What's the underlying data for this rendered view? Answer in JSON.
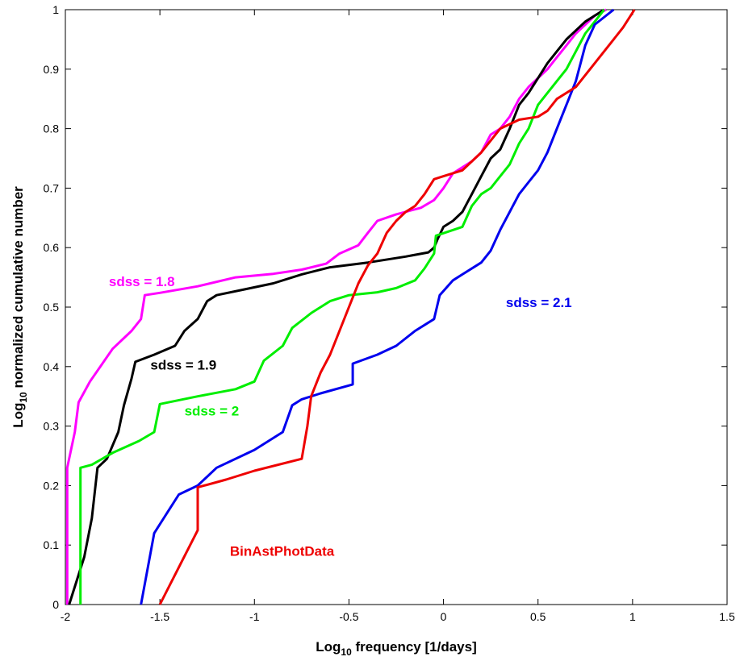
{
  "chart_data": {
    "type": "line",
    "title": "",
    "xlabel": {
      "base": "Log",
      "sub": "10",
      "rest": " frequency [1/days]"
    },
    "ylabel": {
      "base": "Log",
      "sub": "10",
      "rest": " normalized cumulative number"
    },
    "xlim": [
      -2,
      1.5
    ],
    "ylim": [
      0,
      1
    ],
    "xticks": [
      "-2",
      "-1.5",
      "-1",
      "-0.5",
      "0",
      "0.5",
      "1",
      "1.5"
    ],
    "yticks": [
      "0",
      "0.1",
      "0.2",
      "0.3",
      "0.4",
      "0.5",
      "0.6",
      "0.7",
      "0.8",
      "0.9",
      "1"
    ],
    "grid": false,
    "legend": "none",
    "series": [
      {
        "name": "sdss = 1.8",
        "color": "#ff00ff",
        "points": [
          [
            -1.99,
            0
          ],
          [
            -1.99,
            0.23
          ],
          [
            -1.95,
            0.29
          ],
          [
            -1.93,
            0.34
          ],
          [
            -1.87,
            0.375
          ],
          [
            -1.75,
            0.43
          ],
          [
            -1.65,
            0.46
          ],
          [
            -1.6,
            0.48
          ],
          [
            -1.58,
            0.52
          ],
          [
            -1.5,
            0.524
          ],
          [
            -1.3,
            0.535
          ],
          [
            -1.1,
            0.55
          ],
          [
            -0.9,
            0.556
          ],
          [
            -0.75,
            0.563
          ],
          [
            -0.62,
            0.573
          ],
          [
            -0.55,
            0.59
          ],
          [
            -0.45,
            0.604
          ],
          [
            -0.4,
            0.625
          ],
          [
            -0.35,
            0.645
          ],
          [
            -0.25,
            0.656
          ],
          [
            -0.12,
            0.667
          ],
          [
            -0.05,
            0.68
          ],
          [
            0.0,
            0.7
          ],
          [
            0.05,
            0.725
          ],
          [
            0.15,
            0.745
          ],
          [
            0.2,
            0.76
          ],
          [
            0.25,
            0.79
          ],
          [
            0.3,
            0.8
          ],
          [
            0.35,
            0.82
          ],
          [
            0.4,
            0.85
          ],
          [
            0.45,
            0.87
          ],
          [
            0.5,
            0.885
          ],
          [
            0.55,
            0.9
          ],
          [
            0.6,
            0.92
          ],
          [
            0.65,
            0.94
          ],
          [
            0.7,
            0.96
          ],
          [
            0.75,
            0.975
          ],
          [
            0.8,
            0.99
          ],
          [
            0.86,
            1
          ]
        ]
      },
      {
        "name": "sdss = 1.9",
        "color": "#000000",
        "points": [
          [
            -1.98,
            0
          ],
          [
            -1.9,
            0.08
          ],
          [
            -1.86,
            0.145
          ],
          [
            -1.83,
            0.23
          ],
          [
            -1.78,
            0.245
          ],
          [
            -1.72,
            0.29
          ],
          [
            -1.69,
            0.335
          ],
          [
            -1.65,
            0.38
          ],
          [
            -1.63,
            0.408
          ],
          [
            -1.53,
            0.42
          ],
          [
            -1.42,
            0.435
          ],
          [
            -1.37,
            0.46
          ],
          [
            -1.3,
            0.48
          ],
          [
            -1.25,
            0.51
          ],
          [
            -1.2,
            0.52
          ],
          [
            -1.05,
            0.53
          ],
          [
            -0.9,
            0.54
          ],
          [
            -0.75,
            0.555
          ],
          [
            -0.6,
            0.567
          ],
          [
            -0.4,
            0.575
          ],
          [
            -0.2,
            0.585
          ],
          [
            -0.08,
            0.592
          ],
          [
            -0.05,
            0.6
          ],
          [
            -0.03,
            0.615
          ],
          [
            0.0,
            0.635
          ],
          [
            0.05,
            0.645
          ],
          [
            0.1,
            0.66
          ],
          [
            0.15,
            0.69
          ],
          [
            0.2,
            0.72
          ],
          [
            0.25,
            0.75
          ],
          [
            0.3,
            0.765
          ],
          [
            0.35,
            0.8
          ],
          [
            0.4,
            0.84
          ],
          [
            0.45,
            0.86
          ],
          [
            0.5,
            0.885
          ],
          [
            0.55,
            0.91
          ],
          [
            0.6,
            0.93
          ],
          [
            0.65,
            0.95
          ],
          [
            0.7,
            0.965
          ],
          [
            0.75,
            0.98
          ],
          [
            0.8,
            0.99
          ],
          [
            0.85,
            1
          ]
        ]
      },
      {
        "name": "sdss = 2",
        "color": "#00ee00",
        "points": [
          [
            -1.92,
            0
          ],
          [
            -1.92,
            0.23
          ],
          [
            -1.86,
            0.235
          ],
          [
            -1.75,
            0.255
          ],
          [
            -1.61,
            0.275
          ],
          [
            -1.53,
            0.29
          ],
          [
            -1.5,
            0.337
          ],
          [
            -1.3,
            0.35
          ],
          [
            -1.1,
            0.362
          ],
          [
            -1.0,
            0.375
          ],
          [
            -0.95,
            0.41
          ],
          [
            -0.85,
            0.435
          ],
          [
            -0.8,
            0.465
          ],
          [
            -0.7,
            0.49
          ],
          [
            -0.6,
            0.51
          ],
          [
            -0.5,
            0.52
          ],
          [
            -0.35,
            0.525
          ],
          [
            -0.25,
            0.532
          ],
          [
            -0.15,
            0.545
          ],
          [
            -0.1,
            0.565
          ],
          [
            -0.05,
            0.59
          ],
          [
            -0.04,
            0.62
          ],
          [
            0.1,
            0.635
          ],
          [
            0.15,
            0.67
          ],
          [
            0.2,
            0.69
          ],
          [
            0.25,
            0.7
          ],
          [
            0.3,
            0.72
          ],
          [
            0.35,
            0.74
          ],
          [
            0.4,
            0.775
          ],
          [
            0.45,
            0.8
          ],
          [
            0.5,
            0.84
          ],
          [
            0.55,
            0.86
          ],
          [
            0.6,
            0.88
          ],
          [
            0.65,
            0.9
          ],
          [
            0.7,
            0.93
          ],
          [
            0.75,
            0.96
          ],
          [
            0.8,
            0.98
          ],
          [
            0.85,
            1
          ]
        ]
      },
      {
        "name": "sdss = 2.1",
        "color": "#0000ee",
        "points": [
          [
            -1.6,
            0
          ],
          [
            -1.53,
            0.12
          ],
          [
            -1.48,
            0.145
          ],
          [
            -1.4,
            0.185
          ],
          [
            -1.3,
            0.2
          ],
          [
            -1.2,
            0.23
          ],
          [
            -1.0,
            0.26
          ],
          [
            -0.9,
            0.28
          ],
          [
            -0.85,
            0.29
          ],
          [
            -0.8,
            0.335
          ],
          [
            -0.75,
            0.345
          ],
          [
            -0.65,
            0.355
          ],
          [
            -0.48,
            0.37
          ],
          [
            -0.48,
            0.405
          ],
          [
            -0.35,
            0.42
          ],
          [
            -0.25,
            0.435
          ],
          [
            -0.15,
            0.46
          ],
          [
            -0.05,
            0.48
          ],
          [
            -0.02,
            0.52
          ],
          [
            0.05,
            0.545
          ],
          [
            0.1,
            0.555
          ],
          [
            0.2,
            0.575
          ],
          [
            0.25,
            0.595
          ],
          [
            0.3,
            0.63
          ],
          [
            0.35,
            0.66
          ],
          [
            0.4,
            0.69
          ],
          [
            0.45,
            0.71
          ],
          [
            0.5,
            0.73
          ],
          [
            0.55,
            0.76
          ],
          [
            0.6,
            0.8
          ],
          [
            0.65,
            0.84
          ],
          [
            0.7,
            0.88
          ],
          [
            0.75,
            0.94
          ],
          [
            0.8,
            0.975
          ],
          [
            0.9,
            1
          ]
        ]
      },
      {
        "name": "BinAstPhotData",
        "color": "#ee0000",
        "points": [
          [
            -1.5,
            0
          ],
          [
            -1.3,
            0.125
          ],
          [
            -1.3,
            0.197
          ],
          [
            -1.15,
            0.21
          ],
          [
            -1.0,
            0.225
          ],
          [
            -0.75,
            0.245
          ],
          [
            -0.72,
            0.3
          ],
          [
            -0.7,
            0.35
          ],
          [
            -0.65,
            0.39
          ],
          [
            -0.6,
            0.42
          ],
          [
            -0.55,
            0.46
          ],
          [
            -0.5,
            0.5
          ],
          [
            -0.45,
            0.54
          ],
          [
            -0.4,
            0.57
          ],
          [
            -0.35,
            0.59
          ],
          [
            -0.3,
            0.625
          ],
          [
            -0.25,
            0.645
          ],
          [
            -0.2,
            0.66
          ],
          [
            -0.15,
            0.67
          ],
          [
            -0.1,
            0.69
          ],
          [
            -0.05,
            0.715
          ],
          [
            0.0,
            0.72
          ],
          [
            0.1,
            0.73
          ],
          [
            0.2,
            0.76
          ],
          [
            0.3,
            0.8
          ],
          [
            0.4,
            0.815
          ],
          [
            0.5,
            0.82
          ],
          [
            0.55,
            0.83
          ],
          [
            0.6,
            0.85
          ],
          [
            0.7,
            0.87
          ],
          [
            0.75,
            0.89
          ],
          [
            0.8,
            0.91
          ],
          [
            0.85,
            0.93
          ],
          [
            0.9,
            0.95
          ],
          [
            0.95,
            0.97
          ],
          [
            1.01,
            1
          ]
        ]
      }
    ],
    "annotations": [
      {
        "text": "sdss = 1.8",
        "x": -1.77,
        "y": 0.535,
        "color": "#ff00ff",
        "series": 0
      },
      {
        "text": "sdss = 1.9",
        "x": -1.55,
        "y": 0.395,
        "color": "#000000",
        "series": 1
      },
      {
        "text": "sdss = 2",
        "x": -1.37,
        "y": 0.318,
        "color": "#00ee00",
        "series": 2
      },
      {
        "text": "sdss = 2.1",
        "x": 0.33,
        "y": 0.5,
        "color": "#0000ee",
        "series": 3
      },
      {
        "text": "BinAstPhotData",
        "x": -1.13,
        "y": 0.082,
        "color": "#ee0000",
        "series": 4
      }
    ]
  }
}
